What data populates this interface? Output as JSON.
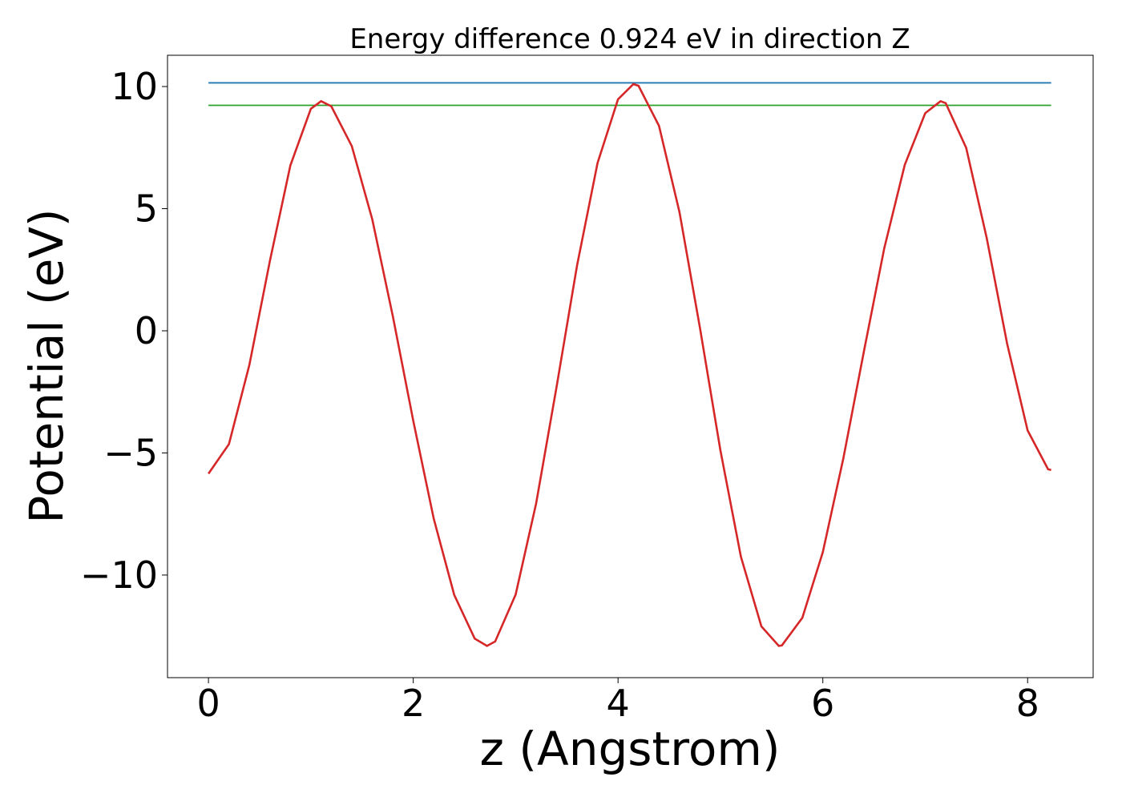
{
  "chart_data": {
    "type": "line",
    "title": "Energy difference 0.924 eV in direction Z",
    "xlabel": "z (Angstrom)",
    "ylabel": "Potential (eV)",
    "xlim": [
      -0.4,
      8.64
    ],
    "ylim": [
      -14.2,
      11.28
    ],
    "xticks": [
      0,
      2,
      4,
      6,
      8
    ],
    "yticks": [
      {
        "value": -10,
        "label": "−10"
      },
      {
        "value": -5,
        "label": "−5"
      },
      0,
      5,
      10
    ],
    "series": [
      {
        "color": "#d62728",
        "x": [
          0,
          0.2,
          0.4,
          0.6,
          0.8,
          1.0,
          1.1,
          1.2,
          1.4,
          1.6,
          1.8,
          2.0,
          2.2,
          2.4,
          2.6,
          2.72,
          2.8,
          3.0,
          3.2,
          3.4,
          3.6,
          3.8,
          4.0,
          4.15,
          4.2,
          4.4,
          4.6,
          4.8,
          5.0,
          5.2,
          5.4,
          5.57,
          5.6,
          5.8,
          6.0,
          6.2,
          6.4,
          6.6,
          6.8,
          7.0,
          7.15,
          7.2,
          7.4,
          7.6,
          7.8,
          8.0,
          8.2,
          8.23
        ],
        "values": [
          -5.85,
          -4.64,
          -1.39,
          2.86,
          6.77,
          9.09,
          9.4,
          9.19,
          7.56,
          4.56,
          0.61,
          -3.68,
          -7.69,
          -10.81,
          -12.6,
          -12.9,
          -12.72,
          -10.8,
          -7.07,
          -2.29,
          2.68,
          6.87,
          9.48,
          10.1,
          10.03,
          8.39,
          4.86,
          0.12,
          -4.9,
          -9.25,
          -12.1,
          -12.9,
          -12.88,
          -11.75,
          -9.06,
          -5.23,
          -0.87,
          3.38,
          6.79,
          8.91,
          9.4,
          9.32,
          7.49,
          3.81,
          -0.53,
          -4.08,
          -5.67,
          -5.7
        ]
      },
      {
        "color": "#1f77b4",
        "x": [
          0,
          8.23
        ],
        "values": [
          10.15,
          10.15
        ]
      },
      {
        "color": "#2ca02c",
        "x": [
          0,
          8.23
        ],
        "values": [
          9.23,
          9.23
        ]
      }
    ]
  }
}
